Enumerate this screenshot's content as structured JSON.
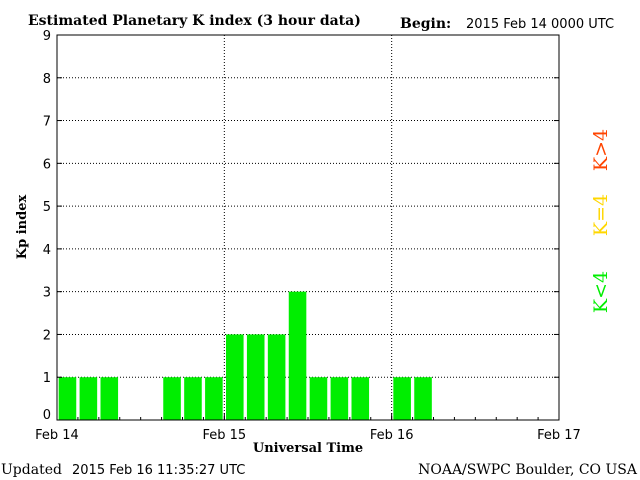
{
  "header": {
    "title": "Estimated Planetary K index (3 hour data)",
    "begin_label": "Begin:",
    "begin_value": "2015 Feb 14 0000 UTC"
  },
  "footer": {
    "updated_label": "Updated",
    "updated_value": "2015 Feb 16 11:35:27 UTC",
    "source": "NOAA/SWPC Boulder, CO USA"
  },
  "legend": {
    "high": {
      "text": "K>4",
      "color": "#ff4400"
    },
    "mid": {
      "text": "K=4",
      "color": "#ffd700"
    },
    "low": {
      "text": "K<4",
      "color": "#00ee00"
    }
  },
  "chart_data": {
    "type": "bar",
    "title": "Estimated Planetary K index (3 hour data)",
    "xlabel": "Universal Time",
    "ylabel": "Kp index",
    "ylim": [
      0,
      9
    ],
    "yticks": [
      0,
      1,
      2,
      3,
      4,
      5,
      6,
      7,
      8,
      9
    ],
    "x_tick_labels": [
      "Feb 14",
      "Feb 15",
      "Feb 16",
      "Feb 17"
    ],
    "interval_hours": 3,
    "grid": true,
    "bar_color": "#00ee00",
    "values": [
      1,
      1,
      1,
      null,
      null,
      1,
      1,
      1,
      2,
      2,
      2,
      3,
      1,
      1,
      1,
      null,
      1,
      1,
      null,
      null,
      null,
      null,
      null,
      null
    ]
  }
}
